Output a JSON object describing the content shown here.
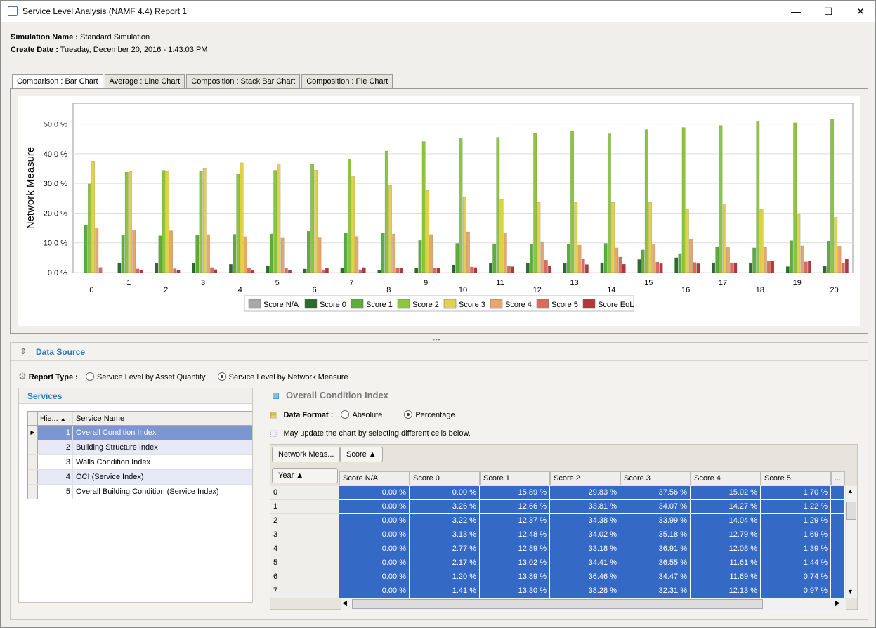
{
  "window": {
    "title": "Service Level Analysis (NAMF 4.4) Report 1",
    "minimize": "—",
    "maximize": "☐",
    "close": "✕"
  },
  "info": {
    "sim_label": "Simulation Name :",
    "sim_value": "Standard Simulation",
    "date_label": "Create Date :",
    "date_value": "Tuesday, December 20, 2016 - 1:43:03 PM"
  },
  "tabs": [
    "Comparison : Bar Chart",
    "Average : Line Chart",
    "Composition : Stack Bar Chart",
    "Composition : Pie Chart"
  ],
  "chart_data": {
    "type": "bar",
    "ylabel": "Network Measure",
    "ylim": [
      0,
      57
    ],
    "yticks": [
      "0.0 %",
      "10.0 %",
      "20.0 %",
      "30.0 %",
      "40.0 %",
      "50.0 %"
    ],
    "categories": [
      "0",
      "1",
      "2",
      "3",
      "4",
      "5",
      "6",
      "7",
      "8",
      "9",
      "10",
      "11",
      "12",
      "13",
      "14",
      "15",
      "16",
      "17",
      "18",
      "19",
      "20"
    ],
    "legend_position": "bottom",
    "series": [
      {
        "name": "Score N/A",
        "color": "#a8a8a8",
        "values": [
          0,
          0,
          0,
          0,
          0,
          0,
          0,
          0,
          0,
          0,
          0,
          0,
          0,
          0,
          0,
          0,
          0,
          0,
          0,
          0,
          0
        ]
      },
      {
        "name": "Score 0",
        "color": "#2d6b2d",
        "values": [
          0,
          3.26,
          3.22,
          3.13,
          2.77,
          2.17,
          1.2,
          1.41,
          0.8,
          1.6,
          2.6,
          3.2,
          3.2,
          3.1,
          3.3,
          4.4,
          5.0,
          3.3,
          3.3,
          2.0,
          2.1
        ]
      },
      {
        "name": "Score 1",
        "color": "#5cae3c",
        "values": [
          15.89,
          12.66,
          12.37,
          12.48,
          12.89,
          13.02,
          13.89,
          13.3,
          13.4,
          10.8,
          9.8,
          9.7,
          9.5,
          9.6,
          9.8,
          7.6,
          6.4,
          8.5,
          8.3,
          10.7,
          10.6
        ]
      },
      {
        "name": "Score 2",
        "color": "#8cc63f",
        "values": [
          29.83,
          33.81,
          34.38,
          34.02,
          33.18,
          34.41,
          36.46,
          38.28,
          40.9,
          44.1,
          45.1,
          45.5,
          46.8,
          47.6,
          46.7,
          48.1,
          48.8,
          49.5,
          51.0,
          50.4,
          51.6
        ]
      },
      {
        "name": "Score 3",
        "color": "#e2d24a",
        "values": [
          37.56,
          34.07,
          33.99,
          35.18,
          36.91,
          36.55,
          34.47,
          32.31,
          29.3,
          27.6,
          25.3,
          24.6,
          23.6,
          23.6,
          23.6,
          23.6,
          21.5,
          23.1,
          21.2,
          19.8,
          18.6
        ]
      },
      {
        "name": "Score 4",
        "color": "#e9a66a",
        "values": [
          15.02,
          14.27,
          14.04,
          12.79,
          12.08,
          11.61,
          11.69,
          12.13,
          13.0,
          12.8,
          13.7,
          13.4,
          10.4,
          9.2,
          8.3,
          9.6,
          11.3,
          8.7,
          8.5,
          9.0,
          8.9
        ]
      },
      {
        "name": "Score 5",
        "color": "#dc6b5e",
        "values": [
          1.7,
          1.22,
          1.29,
          1.69,
          1.39,
          1.44,
          0.74,
          0.97,
          1.4,
          1.5,
          1.9,
          2.1,
          4.2,
          4.7,
          5.2,
          3.5,
          3.4,
          3.3,
          3.9,
          3.6,
          3.1
        ]
      },
      {
        "name": "Score EoL",
        "color": "#b3383b",
        "values": [
          0,
          0.8,
          0.8,
          1.0,
          0.9,
          0.9,
          1.6,
          1.7,
          1.6,
          1.6,
          1.7,
          2.0,
          2.2,
          2.7,
          2.8,
          3.0,
          3.0,
          3.3,
          3.9,
          4.0,
          4.6
        ]
      }
    ]
  },
  "data_source": {
    "title": "Data Source",
    "report_type_label": "Report Type :",
    "options": [
      "Service Level by Asset Quantity",
      "Service Level by Network Measure"
    ],
    "selected": 1
  },
  "services": {
    "title": "Services",
    "headers": [
      "Hie...",
      "Service Name"
    ],
    "rows": [
      {
        "id": "1",
        "name": "Overall Condition Index"
      },
      {
        "id": "2",
        "name": "Building Structure Index"
      },
      {
        "id": "3",
        "name": "Walls Condition Index"
      },
      {
        "id": "4",
        "name": "OCI (Service Index)"
      },
      {
        "id": "5",
        "name": "Overall Building Condition (Service Index)"
      }
    ]
  },
  "detail": {
    "title": "Overall Condition Index",
    "format_label": "Data Format :",
    "format_options": [
      "Absolute",
      "Percentage"
    ],
    "hint": "May update the chart by selecting different cells below.",
    "pivot_buttons": [
      "Network Meas...",
      "Score ▲"
    ],
    "year_header": "Year ▲",
    "columns": [
      "Score N/A",
      "Score 0",
      "Score 1",
      "Score 2",
      "Score 3",
      "Score 4",
      "Score 5",
      "..."
    ],
    "rows": [
      {
        "year": "0",
        "vals": [
          "0.00 %",
          "0.00 %",
          "15.89 %",
          "29.83 %",
          "37.56 %",
          "15.02 %",
          "1.70 %"
        ]
      },
      {
        "year": "1",
        "vals": [
          "0.00 %",
          "3.26 %",
          "12.66 %",
          "33.81 %",
          "34.07 %",
          "14.27 %",
          "1.22 %"
        ]
      },
      {
        "year": "2",
        "vals": [
          "0.00 %",
          "3.22 %",
          "12.37 %",
          "34.38 %",
          "33.99 %",
          "14.04 %",
          "1.29 %"
        ]
      },
      {
        "year": "3",
        "vals": [
          "0.00 %",
          "3.13 %",
          "12.48 %",
          "34.02 %",
          "35.18 %",
          "12.79 %",
          "1.69 %"
        ]
      },
      {
        "year": "4",
        "vals": [
          "0.00 %",
          "2.77 %",
          "12.89 %",
          "33.18 %",
          "36.91 %",
          "12.08 %",
          "1.39 %"
        ]
      },
      {
        "year": "5",
        "vals": [
          "0.00 %",
          "2.17 %",
          "13.02 %",
          "34.41 %",
          "36.55 %",
          "11.61 %",
          "1.44 %"
        ]
      },
      {
        "year": "6",
        "vals": [
          "0.00 %",
          "1.20 %",
          "13.89 %",
          "36.46 %",
          "34.47 %",
          "11.69 %",
          "0.74 %"
        ]
      },
      {
        "year": "7",
        "vals": [
          "0.00 %",
          "1.41 %",
          "13.30 %",
          "38.28 %",
          "32.31 %",
          "12.13 %",
          "0.97 %"
        ]
      }
    ]
  }
}
